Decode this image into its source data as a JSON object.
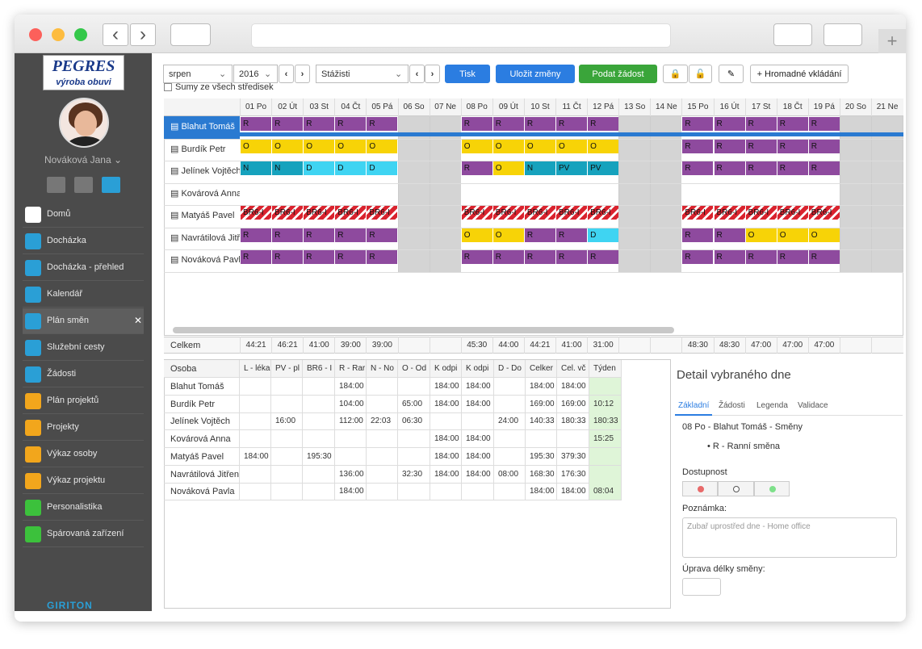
{
  "sidebar": {
    "logo": {
      "brand": "PEGRES",
      "tagline": "výroba obuvi"
    },
    "user": "Nováková Jana",
    "menu": [
      "Domů",
      "Docházka",
      "Docházka - přehled",
      "Kalendář",
      "Plán směn",
      "Služební cesty",
      "Žádosti",
      "Plán projektů",
      "Projekty",
      "Výkaz osoby",
      "Výkaz projektu",
      "Personalistika",
      "Spárovaná zařízení"
    ],
    "active": 4,
    "footer": "GIRITON"
  },
  "toolbar": {
    "month": "srpen",
    "year": "2016",
    "department": "Stážisti",
    "buttons": [
      "Tisk",
      "Uložit změny",
      "Podat žádost",
      "Hromadné vkládání"
    ],
    "checkbox": "Sumy ze všech středisek"
  },
  "schedule": {
    "days": [
      "01 Po",
      "02 Út",
      "03 St",
      "04 Čt",
      "05 Pá",
      "06 So",
      "07 Ne",
      "08 Po",
      "09 Út",
      "10 St",
      "11 Čt",
      "12 Pá",
      "13 So",
      "14 Ne",
      "15 Po",
      "16 Út",
      "17 St",
      "18 Čt",
      "19 Pá",
      "20 So",
      "21 Ne"
    ],
    "shift_colors": {
      "R": "#8e4a9e",
      "O": "#f7d307",
      "N": "#16a2bd",
      "D": "#3fd4f2",
      "PV": "#16a2bd",
      "BR6-I": "#d9232e"
    },
    "selected_row": 0,
    "rows": [
      {
        "name": "Blahut Tomáš",
        "cells": [
          "R",
          "R",
          "R",
          "R",
          "R",
          null,
          null,
          "R",
          "R",
          "R",
          "R",
          "R",
          null,
          null,
          "R",
          "R",
          "R",
          "R",
          "R",
          null,
          null
        ]
      },
      {
        "name": "Burdík Petr",
        "cells": [
          "O",
          "O",
          "O",
          "O",
          "O",
          null,
          null,
          "O",
          "O",
          "O",
          "O",
          "O",
          null,
          null,
          "R",
          "R",
          "R",
          "R",
          "R",
          null,
          null
        ]
      },
      {
        "name": "Jelínek Vojtěch",
        "cells": [
          "N",
          "N",
          "D",
          "D",
          "D",
          null,
          null,
          "R",
          "O",
          "N",
          "PV",
          "PV",
          null,
          null,
          "R",
          "R",
          "R",
          "R",
          "R",
          null,
          null
        ]
      },
      {
        "name": "Kovárová Anna",
        "cells": [
          null,
          null,
          null,
          null,
          null,
          null,
          null,
          null,
          null,
          null,
          null,
          null,
          null,
          null,
          null,
          null,
          null,
          null,
          null,
          null,
          null
        ]
      },
      {
        "name": "Matyáš Pavel",
        "cells": [
          "BR6-I",
          "BR6-I",
          "BR6-I",
          "BR6-I",
          "BR6-I",
          null,
          null,
          "BR6-I",
          "BR6-I",
          "BR6-I",
          "BR6-I",
          "BR6-I",
          null,
          null,
          "BR6-I",
          "BR6-I",
          "BR6-I",
          "BR6-I",
          "BR6-I",
          null,
          null
        ]
      },
      {
        "name": "Navrátilová Jitřenka",
        "cells": [
          "R",
          "R",
          "R",
          "R",
          "R",
          null,
          null,
          "O",
          "O",
          "R",
          "R",
          "D",
          null,
          null,
          "R",
          "R",
          "O",
          "O",
          "O",
          null,
          null
        ]
      },
      {
        "name": "Nováková Pavla",
        "cells": [
          "R",
          "R",
          "R",
          "R",
          "R",
          null,
          null,
          "R",
          "R",
          "R",
          "R",
          "R",
          null,
          null,
          "R",
          "R",
          "R",
          "R",
          "R",
          null,
          null
        ]
      }
    ],
    "totals_label": "Celkem",
    "totals": [
      "44:21",
      "46:21",
      "41:00",
      "39:00",
      "39:00",
      null,
      null,
      "45:30",
      "44:00",
      "44:21",
      "41:00",
      "31:00",
      null,
      null,
      "48:30",
      "48:30",
      "47:00",
      "47:00",
      "47:00",
      null,
      null
    ]
  },
  "summary": {
    "headers": [
      "Osoba",
      "L - léka",
      "PV - pl",
      "BR6 - I",
      "R - Rar",
      "N - No",
      "O - Od",
      "K odpi",
      "K odpi",
      "D - Do",
      "Celker",
      "Cel. vč",
      "Týden"
    ],
    "rows": [
      [
        "Blahut Tomáš",
        null,
        null,
        null,
        "184:00",
        null,
        null,
        "184:00",
        "184:00",
        null,
        "184:00",
        "184:00",
        null
      ],
      [
        "Burdík Petr",
        null,
        null,
        null,
        "104:00",
        null,
        "65:00",
        "184:00",
        "184:00",
        null,
        "169:00",
        "169:00",
        "10:12"
      ],
      [
        "Jelínek Vojtěch",
        null,
        "16:00",
        null,
        "112:00",
        "22:03",
        "06:30",
        null,
        null,
        "24:00",
        "140:33",
        "180:33",
        "180:33"
      ],
      [
        "Kovárová Anna",
        null,
        null,
        null,
        null,
        null,
        null,
        "184:00",
        "184:00",
        null,
        null,
        null,
        "15:25"
      ],
      [
        "Matyáš Pavel",
        "184:00",
        null,
        "195:30",
        null,
        null,
        null,
        "184:00",
        "184:00",
        null,
        "195:30",
        "379:30",
        null
      ],
      [
        "Navrátilová Jitřenka",
        null,
        null,
        null,
        "136:00",
        null,
        "32:30",
        "184:00",
        "184:00",
        "08:00",
        "168:30",
        "176:30",
        null
      ],
      [
        "Nováková Pavla",
        null,
        null,
        null,
        "184:00",
        null,
        null,
        null,
        null,
        null,
        "184:00",
        "184:00",
        "08:04"
      ]
    ]
  },
  "detail": {
    "title": "Detail vybraného dne",
    "tabs": [
      "Základní",
      "Žádosti",
      "Legenda",
      "Validace"
    ],
    "active_tab": 0,
    "heading": "08 Po - Blahut Tomáš - Směny",
    "shift": "R - Ranní směna",
    "availability_label": "Dostupnost",
    "note_label": "Poznámka:",
    "note": "Zubař uprostřed dne - Home office",
    "length_label": "Úprava délky směny:"
  }
}
